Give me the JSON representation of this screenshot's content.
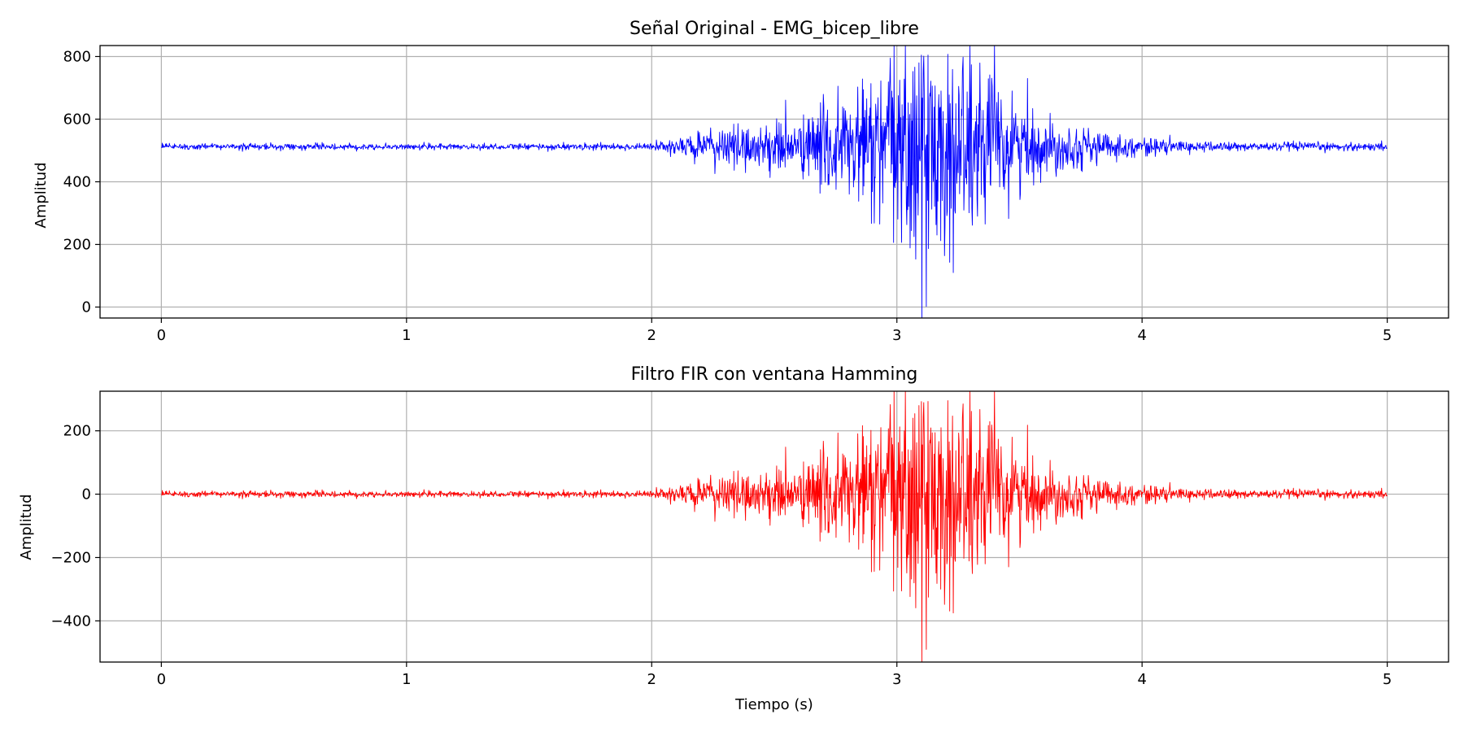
{
  "chart_data": [
    {
      "type": "line",
      "title": "Señal Original - EMG_bicep_libre",
      "xlabel": "",
      "ylabel": "Amplitud",
      "xlim": [
        -0.25,
        5.25
      ],
      "ylim": [
        -35,
        835
      ],
      "xticks": [
        0,
        1,
        2,
        3,
        4,
        5
      ],
      "yticks": [
        0,
        200,
        400,
        600,
        800
      ],
      "ytick_labels": [
        "0",
        "200",
        "400",
        "600",
        "800"
      ],
      "grid": true,
      "series": [
        {
          "color": "#0000ff",
          "baseline": 512,
          "x_range": [
            0,
            5
          ],
          "envelope": [
            [
              0,
              5
            ],
            [
              1.5,
              5
            ],
            [
              2,
              6
            ],
            [
              2.3,
              30
            ],
            [
              2.6,
              45
            ],
            [
              2.8,
              90
            ],
            [
              3.0,
              150
            ],
            [
              3.15,
              180
            ],
            [
              3.3,
              160
            ],
            [
              3.45,
              90
            ],
            [
              3.6,
              45
            ],
            [
              3.9,
              18
            ],
            [
              4.2,
              8
            ],
            [
              5,
              6
            ]
          ],
          "peaks": [
            {
              "x": 3.12,
              "y": 2
            },
            {
              "x": 3.09,
              "y": 780
            },
            {
              "x": 3.27,
              "y": 798
            },
            {
              "x": 3.23,
              "y": 110
            },
            {
              "x": 2.93,
              "y": 265
            },
            {
              "x": 3.03,
              "y": 728
            },
            {
              "x": 3.47,
              "y": 690
            },
            {
              "x": 3.07,
              "y": 225
            },
            {
              "x": 3.18,
              "y": 690
            },
            {
              "x": 3.36,
              "y": 265
            }
          ]
        }
      ]
    },
    {
      "type": "line",
      "title": "Filtro FIR con ventana Hamming",
      "xlabel": "Tiempo (s)",
      "ylabel": "Amplitud",
      "xlim": [
        -0.25,
        5.25
      ],
      "ylim": [
        -530,
        325
      ],
      "xticks": [
        0,
        1,
        2,
        3,
        4,
        5
      ],
      "yticks": [
        -400,
        -200,
        0,
        200
      ],
      "ytick_labels": [
        "−400",
        "−200",
        "0",
        "200"
      ],
      "grid": true,
      "series": [
        {
          "color": "#ff0000",
          "baseline": 0,
          "x_range": [
            0,
            5
          ],
          "envelope": [
            [
              0,
              5
            ],
            [
              1.5,
              5
            ],
            [
              2,
              6
            ],
            [
              2.3,
              30
            ],
            [
              2.6,
              45
            ],
            [
              2.8,
              90
            ],
            [
              3.0,
              150
            ],
            [
              3.15,
              180
            ],
            [
              3.3,
              160
            ],
            [
              3.45,
              90
            ],
            [
              3.6,
              45
            ],
            [
              3.9,
              18
            ],
            [
              4.2,
              8
            ],
            [
              5,
              6
            ]
          ],
          "peaks": [
            {
              "x": 3.12,
              "y": -490
            },
            {
              "x": 3.09,
              "y": 280
            },
            {
              "x": 3.27,
              "y": 285
            },
            {
              "x": 3.23,
              "y": -375
            },
            {
              "x": 2.93,
              "y": -240
            },
            {
              "x": 3.03,
              "y": 200
            },
            {
              "x": 3.47,
              "y": 180
            },
            {
              "x": 3.07,
              "y": -280
            },
            {
              "x": 3.18,
              "y": 210
            },
            {
              "x": 3.36,
              "y": -220
            }
          ]
        }
      ]
    }
  ],
  "xtick_labels": [
    "0",
    "1",
    "2",
    "3",
    "4",
    "5"
  ]
}
